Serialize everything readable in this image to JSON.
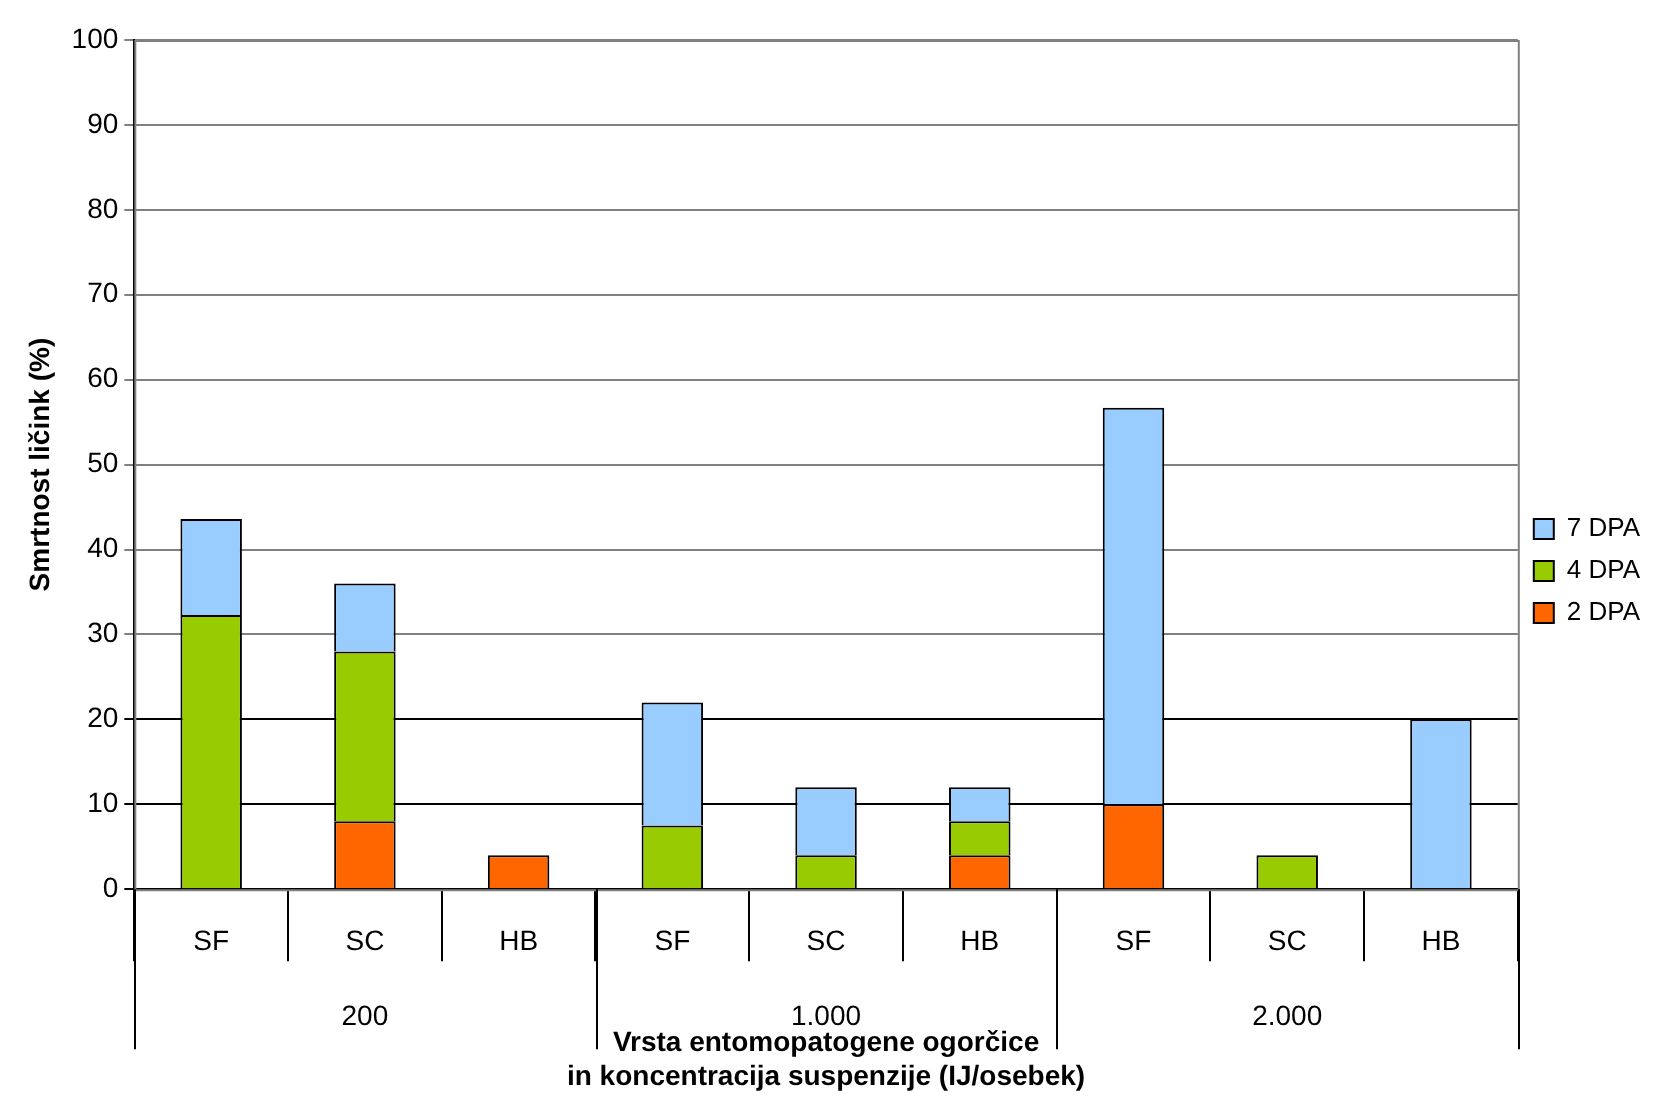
{
  "chart_data": {
    "type": "bar",
    "stacked": true,
    "ylabel": "Smrtnost ličink (%)",
    "xlabel": "Vrsta entomopatogene ogorčice\nin koncentracija suspenzije (IJ/osebek)",
    "categories": [
      "SF",
      "SC",
      "HB",
      "SF",
      "SC",
      "HB",
      "SF",
      "SC",
      "HB"
    ],
    "annotations": [
      "200",
      "1.000",
      "2.000"
    ],
    "series": [
      {
        "name": "2 DPA",
        "color": "#ff6600",
        "values": [
          null,
          8,
          4,
          null,
          null,
          4,
          10,
          null,
          null
        ]
      },
      {
        "name": "4 DPA",
        "color": "#99cc00",
        "values": [
          32.3,
          20,
          null,
          7.5,
          4,
          4,
          null,
          4,
          null
        ]
      },
      {
        "name": "7 DPA",
        "color": "#99ccff",
        "values": [
          11.3,
          8,
          null,
          14.5,
          8,
          4,
          46.7,
          null,
          20
        ]
      }
    ],
    "ylim": [
      0,
      100
    ],
    "yticks": [
      0,
      10,
      20,
      30,
      40,
      50,
      60,
      70,
      80,
      90,
      100
    ],
    "grid": "y",
    "legend": "right"
  }
}
